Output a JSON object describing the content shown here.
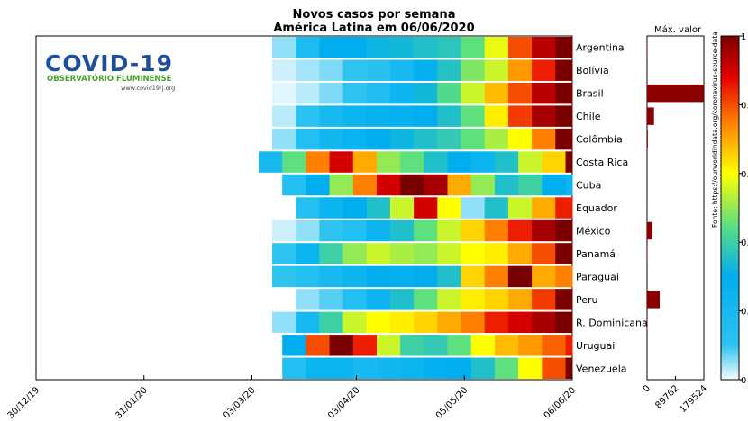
{
  "chart_data": [
    {
      "type": "heatmap",
      "title": "Novos casos por semana",
      "subtitle": "América Latina em 06/06/2020",
      "row_order": "top-to-bottom",
      "rows": [
        "Argentina",
        "Bolívia",
        "Brasil",
        "Chile",
        "Colômbia",
        "Costa Rica",
        "Cuba",
        "Equador",
        "México",
        "Panamá",
        "Paraguai",
        "Peru",
        "R. Dominicana",
        "Uruguai",
        "Venezuela"
      ],
      "xlim": [
        "2019-12-30",
        "2020-06-06"
      ],
      "x_ticks": [
        "2019-12-30",
        "2020-01-31",
        "2020-03-03",
        "2020-04-03",
        "2020-05-05",
        "2020-06-06"
      ],
      "x_tick_labels": [
        "30/12/19",
        "31/01/20",
        "03/03/20",
        "03/04/20",
        "05/05/20",
        "06/06/20"
      ],
      "value_scale": "normalized per country (0-1)",
      "colormap": "jet",
      "series": [
        {
          "name": "Argentina",
          "x": [
            "2020-03-09",
            "2020-03-16",
            "2020-03-23",
            "2020-03-30",
            "2020-04-06",
            "2020-04-13",
            "2020-04-20",
            "2020-04-27",
            "2020-05-04",
            "2020-05-11",
            "2020-05-18",
            "2020-05-25",
            "2020-06-01"
          ],
          "values": [
            0.05,
            0.18,
            0.3,
            0.3,
            0.32,
            0.33,
            0.35,
            0.37,
            0.45,
            0.58,
            0.8,
            0.93,
            1.0
          ]
        },
        {
          "name": "Bolívia",
          "x": [
            "2020-03-09",
            "2020-03-16",
            "2020-03-23",
            "2020-03-30",
            "2020-04-06",
            "2020-04-13",
            "2020-04-20",
            "2020-04-27",
            "2020-05-04",
            "2020-05-11",
            "2020-05-18",
            "2020-05-25",
            "2020-06-01"
          ],
          "values": [
            0.02,
            0.04,
            0.06,
            0.1,
            0.13,
            0.2,
            0.28,
            0.36,
            0.48,
            0.55,
            0.72,
            0.85,
            1.0
          ]
        },
        {
          "name": "Brasil",
          "x": [
            "2020-03-09",
            "2020-03-16",
            "2020-03-23",
            "2020-03-30",
            "2020-04-06",
            "2020-04-13",
            "2020-04-20",
            "2020-04-27",
            "2020-05-04",
            "2020-05-11",
            "2020-05-18",
            "2020-05-25",
            "2020-06-01"
          ],
          "values": [
            0.01,
            0.03,
            0.06,
            0.1,
            0.16,
            0.24,
            0.33,
            0.43,
            0.55,
            0.68,
            0.8,
            0.93,
            1.0
          ]
        },
        {
          "name": "Chile",
          "x": [
            "2020-03-09",
            "2020-03-16",
            "2020-03-23",
            "2020-03-30",
            "2020-04-06",
            "2020-04-13",
            "2020-04-20",
            "2020-04-27",
            "2020-05-04",
            "2020-05-11",
            "2020-05-18",
            "2020-05-25",
            "2020-06-01"
          ],
          "values": [
            0.03,
            0.12,
            0.2,
            0.25,
            0.27,
            0.28,
            0.3,
            0.35,
            0.45,
            0.62,
            0.82,
            0.95,
            1.0
          ]
        },
        {
          "name": "Colômbia",
          "x": [
            "2020-03-09",
            "2020-03-16",
            "2020-03-23",
            "2020-03-30",
            "2020-04-06",
            "2020-04-13",
            "2020-04-20",
            "2020-04-27",
            "2020-05-04",
            "2020-05-11",
            "2020-05-18",
            "2020-05-25",
            "2020-06-01"
          ],
          "values": [
            0.05,
            0.15,
            0.22,
            0.26,
            0.3,
            0.32,
            0.35,
            0.38,
            0.45,
            0.52,
            0.6,
            0.75,
            1.0
          ]
        },
        {
          "name": "Costa Rica",
          "x": [
            "2020-03-05",
            "2020-03-12",
            "2020-03-19",
            "2020-03-26",
            "2020-04-02",
            "2020-04-09",
            "2020-04-16",
            "2020-04-23",
            "2020-04-30",
            "2020-05-07",
            "2020-05-14",
            "2020-05-21",
            "2020-05-28",
            "2020-06-04"
          ],
          "values": [
            0.2,
            0.45,
            0.75,
            0.9,
            0.7,
            0.5,
            0.45,
            0.35,
            0.3,
            0.25,
            0.35,
            0.55,
            0.65,
            1.0
          ]
        },
        {
          "name": "Cuba",
          "x": [
            "2020-03-12",
            "2020-03-19",
            "2020-03-26",
            "2020-04-02",
            "2020-04-09",
            "2020-04-16",
            "2020-04-23",
            "2020-04-30",
            "2020-05-07",
            "2020-05-14",
            "2020-05-21",
            "2020-05-28",
            "2020-06-04"
          ],
          "values": [
            0.15,
            0.3,
            0.5,
            0.75,
            0.9,
            1.0,
            0.95,
            0.7,
            0.5,
            0.35,
            0.4,
            0.3,
            0.25
          ]
        },
        {
          "name": "Equador",
          "x": [
            "2020-03-16",
            "2020-03-23",
            "2020-03-30",
            "2020-04-06",
            "2020-04-13",
            "2020-04-20",
            "2020-04-27",
            "2020-05-04",
            "2020-05-11",
            "2020-05-18",
            "2020-05-25",
            "2020-06-01"
          ],
          "values": [
            0.15,
            0.25,
            0.3,
            0.35,
            0.55,
            0.9,
            0.6,
            0.05,
            0.35,
            0.55,
            0.7,
            0.85
          ]
        },
        {
          "name": "México",
          "x": [
            "2020-03-09",
            "2020-03-16",
            "2020-03-23",
            "2020-03-30",
            "2020-04-06",
            "2020-04-13",
            "2020-04-20",
            "2020-04-27",
            "2020-05-04",
            "2020-05-11",
            "2020-05-18",
            "2020-05-25",
            "2020-06-01"
          ],
          "values": [
            0.02,
            0.05,
            0.1,
            0.15,
            0.25,
            0.35,
            0.45,
            0.55,
            0.65,
            0.75,
            0.85,
            0.95,
            1.0
          ]
        },
        {
          "name": "Panamá",
          "x": [
            "2020-03-09",
            "2020-03-16",
            "2020-03-23",
            "2020-03-30",
            "2020-04-06",
            "2020-04-13",
            "2020-04-20",
            "2020-04-27",
            "2020-05-04",
            "2020-05-11",
            "2020-05-18",
            "2020-05-25",
            "2020-06-01"
          ],
          "values": [
            0.1,
            0.25,
            0.4,
            0.5,
            0.55,
            0.52,
            0.5,
            0.55,
            0.6,
            0.62,
            0.7,
            0.8,
            1.0
          ]
        },
        {
          "name": "Paraguai",
          "x": [
            "2020-03-09",
            "2020-03-16",
            "2020-03-23",
            "2020-03-30",
            "2020-04-06",
            "2020-04-13",
            "2020-04-20",
            "2020-04-27",
            "2020-05-04",
            "2020-05-11",
            "2020-05-18",
            "2020-05-25",
            "2020-06-01"
          ],
          "values": [
            0.1,
            0.15,
            0.2,
            0.25,
            0.3,
            0.28,
            0.3,
            0.35,
            0.65,
            0.75,
            1.0,
            0.7,
            0.75
          ]
        },
        {
          "name": "Peru",
          "x": [
            "2020-03-16",
            "2020-03-23",
            "2020-03-30",
            "2020-04-06",
            "2020-04-13",
            "2020-04-20",
            "2020-04-27",
            "2020-05-04",
            "2020-05-11",
            "2020-05-18",
            "2020-05-25",
            "2020-06-01"
          ],
          "values": [
            0.05,
            0.08,
            0.15,
            0.25,
            0.35,
            0.45,
            0.55,
            0.62,
            0.65,
            0.7,
            0.82,
            1.0
          ]
        },
        {
          "name": "R. Dominicana",
          "x": [
            "2020-03-09",
            "2020-03-16",
            "2020-03-23",
            "2020-03-30",
            "2020-04-06",
            "2020-04-13",
            "2020-04-20",
            "2020-04-27",
            "2020-05-04",
            "2020-05-11",
            "2020-05-18",
            "2020-05-25",
            "2020-06-01"
          ],
          "values": [
            0.05,
            0.2,
            0.4,
            0.55,
            0.6,
            0.62,
            0.65,
            0.7,
            0.75,
            0.85,
            0.9,
            0.95,
            1.0
          ]
        },
        {
          "name": "Uruguai",
          "x": [
            "2020-03-12",
            "2020-03-19",
            "2020-03-26",
            "2020-04-02",
            "2020-04-09",
            "2020-04-16",
            "2020-04-23",
            "2020-04-30",
            "2020-05-07",
            "2020-05-14",
            "2020-05-21",
            "2020-05-28",
            "2020-06-04"
          ],
          "values": [
            0.3,
            0.8,
            1.0,
            0.85,
            0.55,
            0.4,
            0.38,
            0.45,
            0.6,
            0.68,
            0.72,
            0.78,
            0.85
          ]
        },
        {
          "name": "Venezuela",
          "x": [
            "2020-03-12",
            "2020-03-19",
            "2020-03-26",
            "2020-04-02",
            "2020-04-09",
            "2020-04-16",
            "2020-04-23",
            "2020-04-30",
            "2020-05-07",
            "2020-05-14",
            "2020-05-21",
            "2020-05-28",
            "2020-06-04"
          ],
          "values": [
            0.15,
            0.25,
            0.25,
            0.2,
            0.22,
            0.25,
            0.28,
            0.3,
            0.35,
            0.45,
            0.6,
            0.8,
            1.0
          ]
        }
      ]
    },
    {
      "type": "bar",
      "orientation": "horizontal",
      "title": "Máx. valor",
      "categories": [
        "Argentina",
        "Bolívia",
        "Brasil",
        "Chile",
        "Colômbia",
        "Costa Rica",
        "Cuba",
        "Equador",
        "México",
        "Panamá",
        "Paraguai",
        "Peru",
        "R. Dominicana",
        "Uruguai",
        "Venezuela"
      ],
      "values": [
        1000,
        600,
        179524,
        22000,
        2500,
        150,
        100,
        500,
        17000,
        1500,
        100,
        40000,
        900,
        50,
        200
      ],
      "xlim": [
        0,
        179524
      ],
      "x_tick_labels": [
        "0",
        "89762",
        "179524"
      ],
      "color": "#8b0000"
    },
    {
      "type": "colorbar",
      "colormap": "jet",
      "ylim": [
        0,
        1
      ],
      "tick_labels": [
        "0",
        "0.",
        "0.",
        "0.",
        "0.",
        "1"
      ]
    }
  ],
  "header": {
    "title": "Novos casos por semana",
    "subtitle": "América Latina em 06/06/2020"
  },
  "logo": {
    "name": "COVID-19",
    "subtitle": "OBSERVATÓRIO FLUMINENSE",
    "url": "www.covid19rj.org"
  },
  "source": "Fonte: https://ourworldindata.org/coronavirus-source-data",
  "colors": {
    "bar": "#8b0000",
    "logo_blue": "#1c4f9c",
    "logo_green": "#4aa02c"
  }
}
